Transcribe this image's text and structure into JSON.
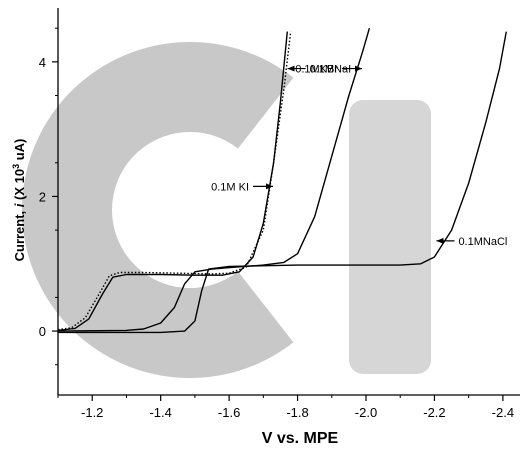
{
  "chart_data": {
    "type": "line",
    "xlabel": "V vs. MPE",
    "ylabel_prefix": "Current, ",
    "ylabel_var": "i",
    "ylabel_unit_open": " (X 10",
    "ylabel_exp": "3",
    "ylabel_unit_close": " uA)",
    "xlim": [
      -1.1,
      -2.45
    ],
    "ylim": [
      -0.95,
      4.8
    ],
    "x_ticks": [
      -1.2,
      -1.4,
      -1.6,
      -1.8,
      -2.0,
      -2.2,
      -2.4
    ],
    "x_tick_labels": [
      "-1.2",
      "-1.4",
      "-1.6",
      "-1.8",
      "-2.0",
      "-2.2",
      "-2.4"
    ],
    "y_ticks": [
      0,
      2,
      4
    ],
    "y_tick_labels": [
      "0",
      "2",
      "4"
    ],
    "watermark_colors": {
      "c": "#c8c8c8",
      "i": "#d6d6d6"
    },
    "series": [
      {
        "name": "0.1M KI",
        "style": "dotted",
        "color": "#000000",
        "points": [
          [
            -1.1,
            0.02
          ],
          [
            -1.14,
            0.05
          ],
          [
            -1.18,
            0.2
          ],
          [
            -1.22,
            0.55
          ],
          [
            -1.25,
            0.82
          ],
          [
            -1.28,
            0.87
          ],
          [
            -1.35,
            0.87
          ],
          [
            -1.45,
            0.86
          ],
          [
            -1.55,
            0.85
          ],
          [
            -1.6,
            0.86
          ],
          [
            -1.65,
            0.95
          ],
          [
            -1.7,
            1.5
          ],
          [
            -1.73,
            2.5
          ],
          [
            -1.76,
            3.6
          ],
          [
            -1.78,
            4.45
          ]
        ]
      },
      {
        "name": "0.1MNaI",
        "style": "solid",
        "color": "#000000",
        "points": [
          [
            -1.1,
            0.01
          ],
          [
            -1.15,
            0.04
          ],
          [
            -1.19,
            0.18
          ],
          [
            -1.23,
            0.55
          ],
          [
            -1.26,
            0.8
          ],
          [
            -1.3,
            0.84
          ],
          [
            -1.4,
            0.84
          ],
          [
            -1.5,
            0.83
          ],
          [
            -1.58,
            0.83
          ],
          [
            -1.63,
            0.88
          ],
          [
            -1.67,
            1.1
          ],
          [
            -1.7,
            1.6
          ],
          [
            -1.73,
            2.5
          ],
          [
            -1.75,
            3.4
          ],
          [
            -1.77,
            4.45
          ]
        ]
      },
      {
        "name": "0.1MKBr",
        "style": "solid",
        "color": "#000000",
        "points": [
          [
            -1.1,
            0.0
          ],
          [
            -1.3,
            0.01
          ],
          [
            -1.35,
            0.03
          ],
          [
            -1.4,
            0.12
          ],
          [
            -1.44,
            0.35
          ],
          [
            -1.47,
            0.7
          ],
          [
            -1.5,
            0.88
          ],
          [
            -1.55,
            0.92
          ],
          [
            -1.62,
            0.95
          ],
          [
            -1.7,
            0.98
          ],
          [
            -1.76,
            1.02
          ],
          [
            -1.8,
            1.15
          ],
          [
            -1.85,
            1.7
          ],
          [
            -1.9,
            2.6
          ],
          [
            -1.95,
            3.5
          ],
          [
            -1.99,
            4.15
          ],
          [
            -2.01,
            4.5
          ]
        ]
      },
      {
        "name": "0.1MNaCl",
        "style": "solid",
        "color": "#000000",
        "points": [
          [
            -1.1,
            -0.02
          ],
          [
            -1.4,
            -0.02
          ],
          [
            -1.47,
            0.0
          ],
          [
            -1.5,
            0.15
          ],
          [
            -1.52,
            0.6
          ],
          [
            -1.54,
            0.92
          ],
          [
            -1.6,
            0.96
          ],
          [
            -1.8,
            0.98
          ],
          [
            -2.0,
            0.98
          ],
          [
            -2.1,
            0.98
          ],
          [
            -2.16,
            1.0
          ],
          [
            -2.2,
            1.1
          ],
          [
            -2.25,
            1.5
          ],
          [
            -2.3,
            2.2
          ],
          [
            -2.35,
            3.1
          ],
          [
            -2.39,
            3.9
          ],
          [
            -2.41,
            4.45
          ]
        ]
      }
    ],
    "annotations": [
      {
        "text": "0.1MNaI",
        "target": [
          -1.765,
          3.9
        ],
        "arrow": "left"
      },
      {
        "text": "0.1MKBr",
        "target": [
          -2.0,
          3.9
        ],
        "arrow": "right"
      },
      {
        "text": "0.1M KI",
        "target": [
          -1.74,
          2.15
        ],
        "arrow": "right"
      },
      {
        "text": "0.1MNaCl",
        "target": [
          -2.2,
          1.34
        ],
        "arrow": "left"
      }
    ]
  }
}
